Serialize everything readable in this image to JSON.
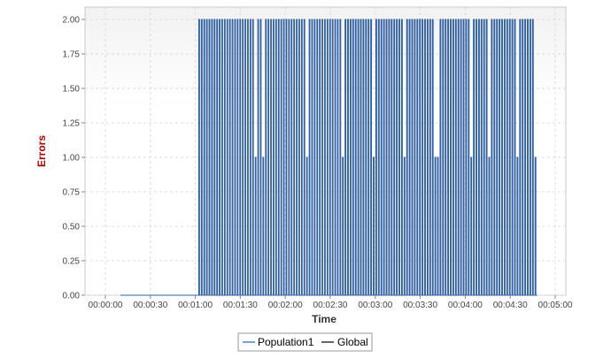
{
  "chart_data": {
    "type": "line",
    "title": "",
    "xlabel": "Time",
    "ylabel": "Errors",
    "xlim_seconds": [
      0,
      300
    ],
    "ylim": [
      0,
      2
    ],
    "x_ticks": [
      {
        "t": 0,
        "label": "00:00:00"
      },
      {
        "t": 30,
        "label": "00:00:30"
      },
      {
        "t": 60,
        "label": "00:01:00"
      },
      {
        "t": 90,
        "label": "00:01:30"
      },
      {
        "t": 120,
        "label": "00:02:00"
      },
      {
        "t": 150,
        "label": "00:02:30"
      },
      {
        "t": 180,
        "label": "00:03:00"
      },
      {
        "t": 210,
        "label": "00:03:30"
      },
      {
        "t": 240,
        "label": "00:04:00"
      },
      {
        "t": 270,
        "label": "00:04:30"
      },
      {
        "t": 300,
        "label": "00:05:00"
      }
    ],
    "y_ticks": [
      "0.00",
      "0.25",
      "0.50",
      "0.75",
      "1.00",
      "1.25",
      "1.50",
      "1.75",
      "2.00"
    ],
    "y_tick_values": [
      0,
      0.25,
      0.5,
      0.75,
      1.0,
      1.25,
      1.5,
      1.75,
      2.0
    ],
    "grid": true,
    "legend_position": "bottom-center",
    "series": [
      {
        "name": "Population1",
        "color": "#3060a0",
        "start_t": 10,
        "flat_until_t": 62,
        "end_t": 288,
        "step_t": 1.0,
        "pulses": [
          2,
          2,
          2,
          2,
          2,
          2,
          2,
          2,
          2,
          2,
          2,
          2,
          2,
          2,
          2,
          2,
          2,
          2,
          2,
          2,
          2,
          2,
          1,
          2,
          2,
          1,
          2,
          2,
          2,
          2,
          2,
          2,
          2,
          2,
          2,
          2,
          2,
          2,
          2,
          2,
          2,
          2,
          1,
          2,
          2,
          2,
          2,
          2,
          2,
          2,
          2,
          2,
          2,
          2,
          2,
          2,
          1,
          2,
          2,
          2,
          2,
          2,
          2,
          2,
          2,
          2,
          2,
          2,
          1,
          2,
          2,
          2,
          2,
          2,
          2,
          2,
          2,
          2,
          2,
          2,
          1,
          2,
          2,
          2,
          2,
          2,
          2,
          2,
          2,
          2,
          2,
          2,
          1,
          1,
          2,
          2,
          2,
          2,
          2,
          2,
          2,
          2,
          2,
          2,
          2,
          2,
          1,
          2,
          2,
          2,
          2,
          2,
          2,
          1,
          2,
          2,
          2,
          2,
          2,
          2,
          2,
          2,
          2,
          2,
          1,
          2,
          2,
          2,
          2,
          2,
          2,
          1
        ]
      },
      {
        "name": "Global",
        "color": "#000000"
      }
    ]
  }
}
